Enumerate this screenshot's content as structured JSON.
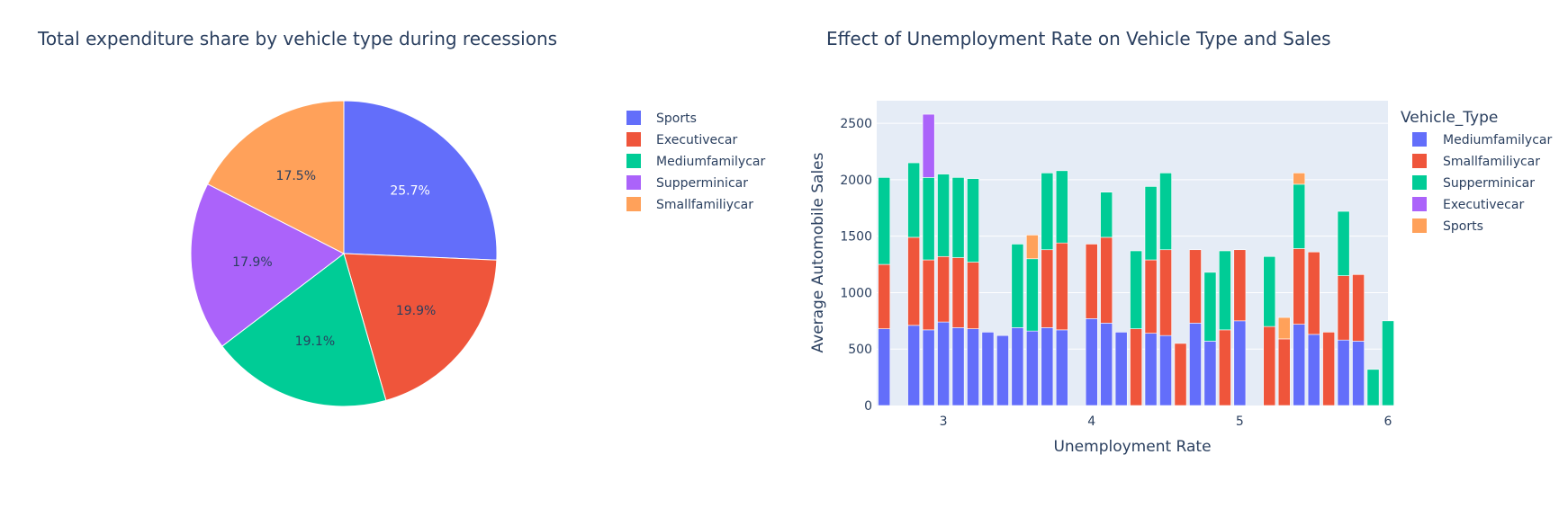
{
  "chart_data": [
    {
      "type": "pie",
      "title": "Total expenditure share by vehicle type during recessions",
      "slices": [
        {
          "label": "Sports",
          "value": 25.7,
          "text": "25.7%",
          "color": "#636efa"
        },
        {
          "label": "Executivecar",
          "value": 19.9,
          "text": "19.9%",
          "color": "#ef553b"
        },
        {
          "label": "Mediumfamilycar",
          "value": 19.1,
          "text": "19.1%",
          "color": "#00cc96"
        },
        {
          "label": "Supperminicar",
          "value": 17.9,
          "text": "17.9%",
          "color": "#ab63fa"
        },
        {
          "label": "Smallfamiliycar",
          "value": 17.5,
          "text": "17.5%",
          "color": "#ffa15a"
        }
      ],
      "legend_order": [
        "Sports",
        "Executivecar",
        "Mediumfamilycar",
        "Supperminicar",
        "Smallfamiliycar"
      ],
      "legend_placement": "right"
    },
    {
      "type": "bar",
      "stacked": true,
      "title": "Effect of Unemployment Rate on Vehicle Type and Sales",
      "xlabel": "Unemployment Rate",
      "ylabel": "Average Automobile Sales",
      "legend_title": "Vehicle_Type",
      "legend_placement": "right",
      "xlim": [
        2.55,
        6.0
      ],
      "ylim": [
        0,
        2700
      ],
      "xticks": [
        3,
        4,
        5,
        6
      ],
      "yticks": [
        0,
        500,
        1000,
        1500,
        2000,
        2500
      ],
      "grid": true,
      "series": [
        {
          "name": "Mediumfamilycar",
          "color": "#636efa",
          "points": [
            [
              2.6,
              680
            ],
            [
              2.8,
              710
            ],
            [
              2.9,
              670
            ],
            [
              3.0,
              740
            ],
            [
              3.1,
              690
            ],
            [
              3.2,
              680
            ],
            [
              3.3,
              650
            ],
            [
              3.4,
              620
            ],
            [
              3.5,
              690
            ],
            [
              3.6,
              660
            ],
            [
              3.7,
              690
            ],
            [
              3.8,
              670
            ],
            [
              4.0,
              770
            ],
            [
              4.1,
              730
            ],
            [
              4.2,
              650
            ],
            [
              4.4,
              640
            ],
            [
              4.5,
              620
            ],
            [
              4.7,
              730
            ],
            [
              4.8,
              570
            ],
            [
              5.0,
              750
            ],
            [
              5.4,
              720
            ],
            [
              5.5,
              630
            ],
            [
              5.7,
              580
            ],
            [
              5.8,
              570
            ]
          ]
        },
        {
          "name": "Smallfamiliycar",
          "color": "#ef553b",
          "points": [
            [
              2.6,
              570
            ],
            [
              2.8,
              780
            ],
            [
              2.9,
              620
            ],
            [
              3.0,
              580
            ],
            [
              3.1,
              620
            ],
            [
              3.2,
              590
            ],
            [
              3.7,
              690
            ],
            [
              3.8,
              770
            ],
            [
              4.0,
              660
            ],
            [
              4.1,
              760
            ],
            [
              4.3,
              680
            ],
            [
              4.4,
              650
            ],
            [
              4.5,
              760
            ],
            [
              4.6,
              550
            ],
            [
              4.7,
              650
            ],
            [
              4.9,
              670
            ],
            [
              5.0,
              630
            ],
            [
              5.2,
              700
            ],
            [
              5.3,
              590
            ],
            [
              5.4,
              670
            ],
            [
              5.5,
              730
            ],
            [
              5.6,
              650
            ],
            [
              5.7,
              570
            ],
            [
              5.8,
              590
            ]
          ]
        },
        {
          "name": "Supperminicar",
          "color": "#00cc96",
          "points": [
            [
              2.6,
              770
            ],
            [
              2.8,
              660
            ],
            [
              2.9,
              730
            ],
            [
              3.0,
              730
            ],
            [
              3.1,
              710
            ],
            [
              3.2,
              740
            ],
            [
              3.5,
              740
            ],
            [
              3.6,
              640
            ],
            [
              3.7,
              680
            ],
            [
              3.8,
              640
            ],
            [
              4.1,
              400
            ],
            [
              4.3,
              690
            ],
            [
              4.4,
              650
            ],
            [
              4.5,
              680
            ],
            [
              4.8,
              610
            ],
            [
              4.9,
              700
            ],
            [
              5.2,
              620
            ],
            [
              5.4,
              570
            ],
            [
              5.7,
              570
            ],
            [
              5.9,
              320
            ],
            [
              6.0,
              750
            ]
          ]
        },
        {
          "name": "Executivecar",
          "color": "#ab63fa",
          "points": [
            [
              2.9,
              560
            ]
          ]
        },
        {
          "name": "Sports",
          "color": "#ffa15a",
          "points": [
            [
              3.6,
              210
            ],
            [
              5.3,
              190
            ],
            [
              5.4,
              100
            ]
          ]
        }
      ]
    }
  ]
}
